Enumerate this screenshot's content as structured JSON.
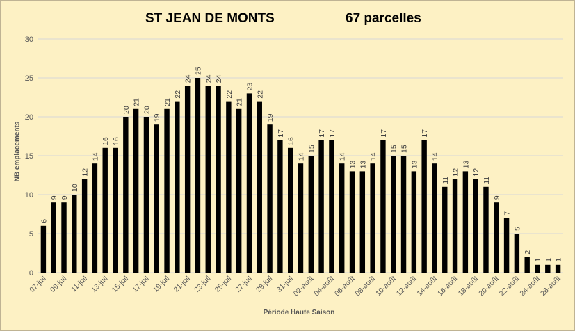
{
  "chart_data": {
    "type": "bar",
    "title": "ST JEAN DE MONTS",
    "subtitle": "67 parcelles",
    "xlabel": "Période Haute Saison",
    "ylabel": "NB emplacements",
    "ylim": [
      0,
      30
    ],
    "yticks": [
      0,
      5,
      10,
      15,
      20,
      25,
      30
    ],
    "grid": true,
    "legend": "none",
    "bar_color": "#000000",
    "categories": [
      "07-juil",
      "08-juil",
      "09-juil",
      "10-juil",
      "11-juil",
      "12-juil",
      "13-juil",
      "14-juil",
      "15-juil",
      "16-juil",
      "17-juil",
      "18-juil",
      "19-juil",
      "20-juil",
      "21-juil",
      "22-juil",
      "23-juil",
      "24-juil",
      "25-juil",
      "26-juil",
      "27-juil",
      "28-juil",
      "29-juil",
      "30-juil",
      "31-juil",
      "01-août",
      "02-août",
      "03-août",
      "04-août",
      "05-août",
      "06-août",
      "07-août",
      "08-août",
      "09-août",
      "10-août",
      "11-août",
      "12-août",
      "13-août",
      "14-août",
      "15-août",
      "16-août",
      "17-août",
      "18-août",
      "19-août",
      "20-août",
      "21-août",
      "22-août",
      "23-août",
      "24-août",
      "25-août",
      "26-août"
    ],
    "tick_labels": [
      "07-juil",
      "09-juil",
      "11-juil",
      "13-juil",
      "15-juil",
      "17-juil",
      "19-juil",
      "21-juil",
      "23-juil",
      "25-juil",
      "27-juil",
      "29-juil",
      "31-juil",
      "02-août",
      "04-août",
      "06-août",
      "08-août",
      "10-août",
      "12-août",
      "14-août",
      "16-août",
      "18-août",
      "20-août",
      "22-août",
      "24-août",
      "26-août"
    ],
    "values": [
      6,
      9,
      9,
      10,
      12,
      14,
      16,
      16,
      20,
      21,
      20,
      19,
      21,
      22,
      24,
      25,
      24,
      24,
      22,
      21,
      23,
      22,
      19,
      17,
      16,
      14,
      15,
      17,
      17,
      14,
      13,
      13,
      14,
      17,
      15,
      15,
      13,
      17,
      14,
      11,
      12,
      13,
      12,
      11,
      9,
      7,
      5,
      2,
      1,
      1,
      1
    ]
  }
}
